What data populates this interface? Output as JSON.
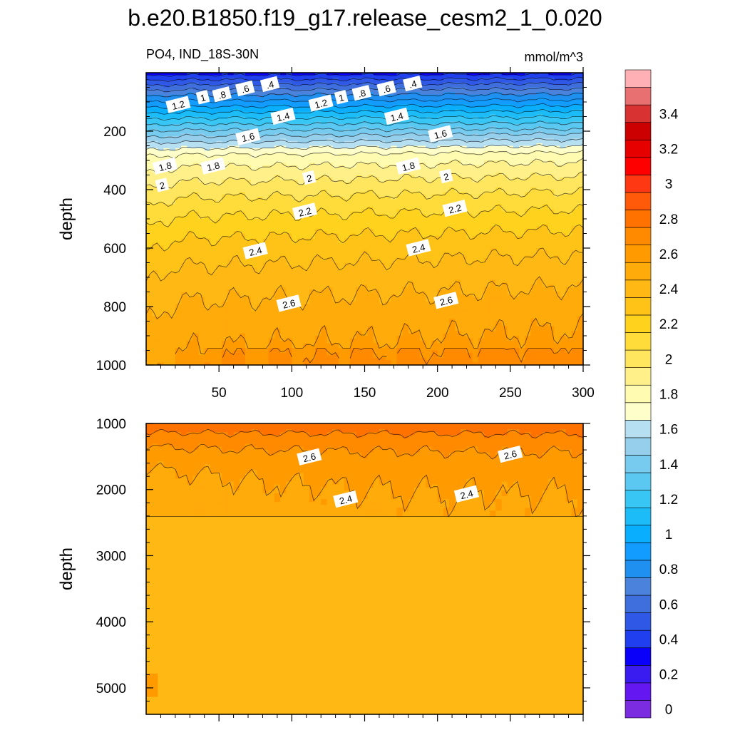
{
  "chart_data": {
    "type": "contour",
    "title": "b.e20.B1850.f19_g17.release_cesm2_1_0.020",
    "variable_label": "PO4, IND_18S-30N",
    "units": "mmol/m^3",
    "upper_panel": {
      "ylabel": "depth",
      "ylim": [
        0,
        1000
      ],
      "xlim": [
        0,
        300
      ],
      "yticks": [
        "200",
        "400",
        "600",
        "800",
        "1000"
      ],
      "xticks": [
        "50",
        "100",
        "150",
        "200",
        "250",
        "300"
      ],
      "contour_labels": [
        {
          "text": ".4",
          "x": 85,
          "depth": 40
        },
        {
          "text": ".6",
          "x": 68,
          "depth": 55
        },
        {
          "text": ".8",
          "x": 52,
          "depth": 75
        },
        {
          "text": "1",
          "x": 39,
          "depth": 85
        },
        {
          "text": "1.2",
          "x": 22,
          "depth": 110
        },
        {
          "text": ".4",
          "x": 183,
          "depth": 38
        },
        {
          "text": ".6",
          "x": 165,
          "depth": 55
        },
        {
          "text": ".8",
          "x": 148,
          "depth": 70
        },
        {
          "text": "1",
          "x": 134,
          "depth": 85
        },
        {
          "text": "1.2",
          "x": 120,
          "depth": 105
        },
        {
          "text": "1.4",
          "x": 94,
          "depth": 150
        },
        {
          "text": "1.4",
          "x": 172,
          "depth": 150
        },
        {
          "text": "1.6",
          "x": 70,
          "depth": 220
        },
        {
          "text": "1.6",
          "x": 202,
          "depth": 210
        },
        {
          "text": "1.8",
          "x": 13,
          "depth": 320
        },
        {
          "text": "1.8",
          "x": 46,
          "depth": 320
        },
        {
          "text": "1.8",
          "x": 180,
          "depth": 320
        },
        {
          "text": "2",
          "x": 11,
          "depth": 385
        },
        {
          "text": "2",
          "x": 112,
          "depth": 360
        },
        {
          "text": "2",
          "x": 206,
          "depth": 355
        },
        {
          "text": "2.2",
          "x": 109,
          "depth": 475
        },
        {
          "text": "2.2",
          "x": 212,
          "depth": 465
        },
        {
          "text": "2.4",
          "x": 75,
          "depth": 610
        },
        {
          "text": "2.4",
          "x": 187,
          "depth": 600
        },
        {
          "text": "2.6",
          "x": 98,
          "depth": 790
        },
        {
          "text": "2.6",
          "x": 206,
          "depth": 780
        }
      ]
    },
    "lower_panel": {
      "ylabel": "depth",
      "ylim": [
        1000,
        5400
      ],
      "xlim": [
        0,
        300
      ],
      "yticks": [
        "1000",
        "2000",
        "3000",
        "4000",
        "5000"
      ],
      "contour_labels": [
        {
          "text": "2.6",
          "x": 112,
          "depth": 1510
        },
        {
          "text": "2.6",
          "x": 250,
          "depth": 1470
        },
        {
          "text": "2.4",
          "x": 137,
          "depth": 2150
        },
        {
          "text": "2.4",
          "x": 220,
          "depth": 2070
        }
      ]
    },
    "colorbar": {
      "levels": [
        0,
        0.1,
        0.2,
        0.3,
        0.4,
        0.5,
        0.6,
        0.7,
        0.8,
        0.9,
        1.0,
        1.1,
        1.2,
        1.3,
        1.4,
        1.5,
        1.6,
        1.7,
        1.8,
        1.9,
        2.0,
        2.1,
        2.2,
        2.3,
        2.4,
        2.5,
        2.6,
        2.7,
        2.8,
        2.9,
        3.0,
        3.1,
        3.2,
        3.3,
        3.4,
        3.5
      ],
      "labels": [
        "0",
        "0.2",
        "0.4",
        "0.6",
        "0.8",
        "1",
        "1.2",
        "1.4",
        "1.6",
        "1.8",
        "2",
        "2.2",
        "2.4",
        "2.6",
        "2.8",
        "3",
        "3.2",
        "3.4"
      ],
      "colors": [
        "#7b2be0",
        "#6417f0",
        "#3a1cf0",
        "#0a00fa",
        "#2040f0",
        "#3058e6",
        "#3f6fdc",
        "#4a82dc",
        "#1f8ff0",
        "#129cff",
        "#0aaeff",
        "#1cbcf8",
        "#38c6f4",
        "#5ac8f0",
        "#76cbef",
        "#95cfec",
        "#b6e0f2",
        "#fefecb",
        "#fffbb0",
        "#fff08a",
        "#ffe65e",
        "#ffdc3a",
        "#ffd21e",
        "#ffc318",
        "#ffb814",
        "#ffab0a",
        "#ff9a00",
        "#ff8a00",
        "#ff7200",
        "#ff5a0a",
        "#ff3814",
        "#ff0000",
        "#e60000",
        "#cc0000",
        "#d83232",
        "#e87070",
        "#ffb0b4"
      ]
    }
  }
}
